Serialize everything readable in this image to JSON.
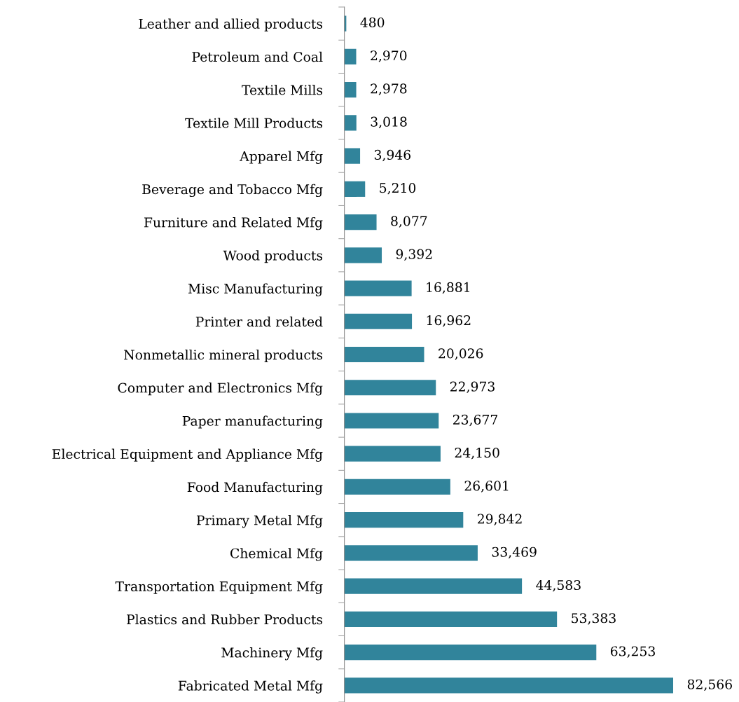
{
  "chart_data": {
    "type": "bar",
    "orientation": "horizontal",
    "categories": [
      "Leather and allied products",
      "Petroleum and Coal",
      "Textile Mills",
      "Textile Mill Products",
      "Apparel Mfg",
      "Beverage and Tobacco Mfg",
      "Furniture and Related Mfg",
      "Wood products",
      "Misc Manufacturing",
      "Printer and related",
      "Nonmetallic mineral products",
      "Computer and Electronics Mfg",
      "Paper manufacturing",
      "Electrical Equipment and Appliance Mfg",
      "Food Manufacturing",
      "Primary Metal Mfg",
      "Chemical Mfg",
      "Transportation Equipment Mfg",
      "Plastics and Rubber Products",
      "Machinery Mfg",
      "Fabricated Metal Mfg"
    ],
    "values": [
      480,
      2970,
      2978,
      3018,
      3946,
      5210,
      8077,
      9392,
      16881,
      16962,
      20026,
      22973,
      23677,
      24150,
      26601,
      29842,
      33469,
      44583,
      53383,
      63253,
      82566
    ],
    "value_labels": [
      "480",
      "2,970",
      "2,978",
      "3,018",
      "3,946",
      "5,210",
      "8,077",
      "9,392",
      "16,881",
      "16,962",
      "20,026",
      "22,973",
      "23,677",
      "24,150",
      "26,601",
      "29,842",
      "33,469",
      "44,583",
      "53,383",
      "63,253",
      "82,566"
    ],
    "color": "#31849b",
    "tick_labels": "y",
    "grid": false,
    "legend": false
  }
}
